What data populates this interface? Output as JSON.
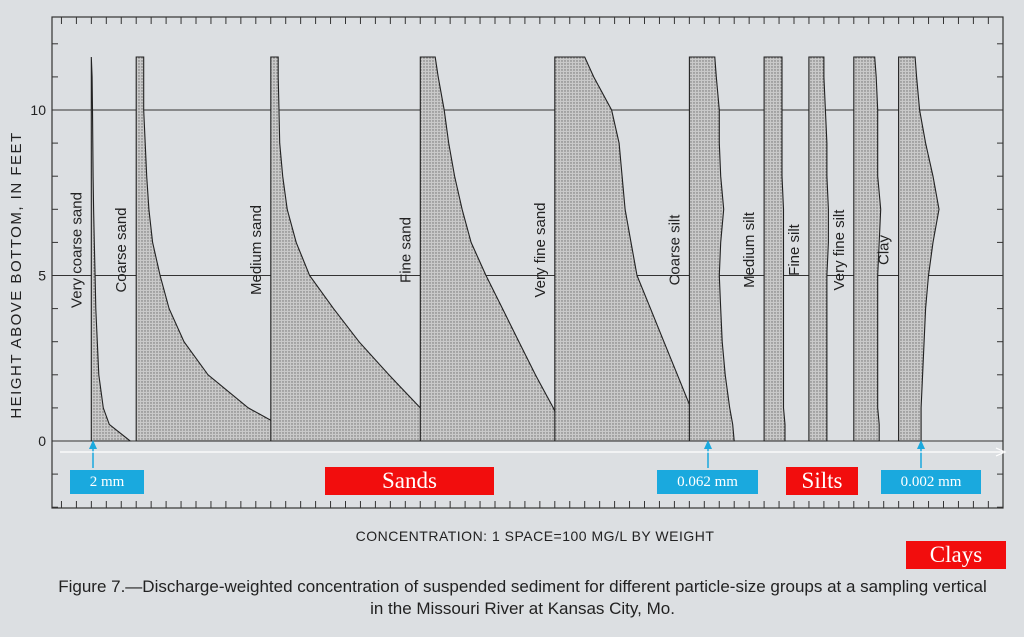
{
  "chart_data": {
    "type": "area",
    "title": "",
    "ylabel": "HEIGHT ABOVE BOTTOM, IN FEET",
    "xlabel": "CONCENTRATION: 1 SPACE=100 MG/L BY WEIGHT",
    "ylim": [
      -2,
      13
    ],
    "yticks": [
      0,
      5,
      10
    ],
    "grid": true,
    "heights": [
      0,
      0.5,
      1,
      2,
      3,
      4,
      5,
      6,
      7,
      8,
      9,
      10,
      11,
      11.6
    ],
    "series": [
      {
        "name": "Very coarse sand",
        "base_space": 5,
        "width_spaces": [
          2.6,
          1.2,
          0.8,
          0.5,
          0.4,
          0.3,
          0.25,
          0.2,
          0.15,
          0.12,
          0.1,
          0.08,
          0.05,
          0
        ]
      },
      {
        "name": "Coarse sand",
        "base_space": 8,
        "width_spaces": [
          13,
          9.5,
          7.5,
          4.8,
          3.2,
          2.2,
          1.6,
          1.1,
          0.85,
          0.7,
          0.6,
          0.5,
          0.5,
          0.5
        ]
      },
      {
        "name": "Medium sand",
        "base_space": 17,
        "width_spaces": [
          12,
          11,
          10,
          7.9,
          5.9,
          4.2,
          2.6,
          1.7,
          1.1,
          0.8,
          0.6,
          0.55,
          0.5,
          0.5
        ]
      },
      {
        "name": "Fine sand",
        "base_space": 27,
        "width_spaces": [
          10,
          9.4,
          8.9,
          7.7,
          6.6,
          5.5,
          4.4,
          3.4,
          2.8,
          2.3,
          1.9,
          1.6,
          1.2,
          1
        ]
      },
      {
        "name": "Very fine sand",
        "base_space": 36,
        "width_spaces": [
          10,
          9.6,
          9.1,
          8.2,
          7.3,
          6.4,
          5.5,
          5.1,
          4.7,
          4.5,
          4.3,
          3.8,
          2.6,
          2
        ]
      },
      {
        "name": "Coarse silt",
        "base_space": 45,
        "width_spaces": [
          3,
          2.9,
          2.7,
          2.4,
          2.2,
          2.1,
          2.0,
          2.1,
          2.3,
          2.1,
          2.0,
          2.0,
          1.8,
          1.7
        ]
      },
      {
        "name": "Medium silt",
        "base_space": 50,
        "width_spaces": [
          1.4,
          1.4,
          1.3,
          1.3,
          1.3,
          1.3,
          1.3,
          1.3,
          1.3,
          1.2,
          1.2,
          1.2,
          1.2,
          1.2
        ]
      },
      {
        "name": "Fine silt",
        "base_space": 53,
        "width_spaces": [
          1.2,
          1.2,
          1.2,
          1.2,
          1.2,
          1.2,
          1.2,
          1.3,
          1.3,
          1.2,
          1.2,
          1.1,
          1.0,
          1.0
        ]
      },
      {
        "name": "Very fine silt",
        "base_space": 56,
        "width_spaces": [
          1.7,
          1.7,
          1.6,
          1.6,
          1.6,
          1.6,
          1.6,
          1.7,
          1.8,
          1.6,
          1.6,
          1.6,
          1.5,
          1.4
        ]
      },
      {
        "name": "Clay",
        "base_space": 59,
        "width_spaces": [
          1.5,
          1.5,
          1.5,
          1.6,
          1.7,
          1.8,
          2.0,
          2.3,
          2.7,
          2.3,
          1.8,
          1.4,
          1.2,
          1.1
        ]
      }
    ]
  },
  "caption": {
    "line1": "Figure 7.—Discharge-weighted concentration of suspended sediment for different particle-size groups at a sampling vertical",
    "line2": "in the Missouri River at Kansas City, Mo."
  },
  "annotations": {
    "size_2mm": "2 mm",
    "size_0062": "0.062 mm",
    "size_0002": "0.002 mm",
    "sands": "Sands",
    "silts": "Silts",
    "clays": "Clays",
    "blue_color": "#1aa9de",
    "red_color": "#f20d0d"
  }
}
